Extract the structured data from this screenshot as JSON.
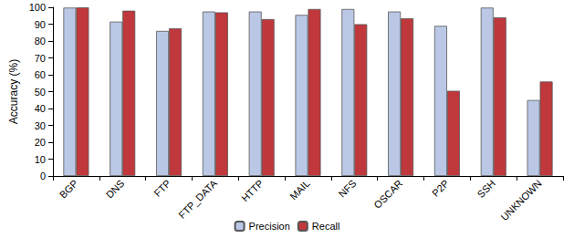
{
  "chart_data": {
    "type": "bar",
    "y_label": "Accuracy (%)",
    "categories": [
      "BGP",
      "DNS",
      "FTP",
      "FTP_DATA",
      "HTTP",
      "MAIL",
      "NFS",
      "OSCAR",
      "P2P",
      "SSH",
      "UNKNOWN"
    ],
    "series": [
      {
        "name": "Precision",
        "color": "#bac8e6",
        "values": [
          99.8,
          91.5,
          86,
          97.5,
          97.5,
          95.5,
          99,
          97.5,
          89,
          99.8,
          45
        ]
      },
      {
        "name": "Recall",
        "color": "#c0383c",
        "values": [
          100,
          98,
          87.5,
          97,
          93,
          99,
          90,
          93.5,
          50.5,
          94,
          56
        ]
      }
    ],
    "ylim": [
      0,
      100
    ],
    "yticks": [
      0,
      10,
      20,
      30,
      40,
      50,
      60,
      70,
      80,
      90,
      100
    ],
    "grid": false,
    "legend": "bottom"
  }
}
